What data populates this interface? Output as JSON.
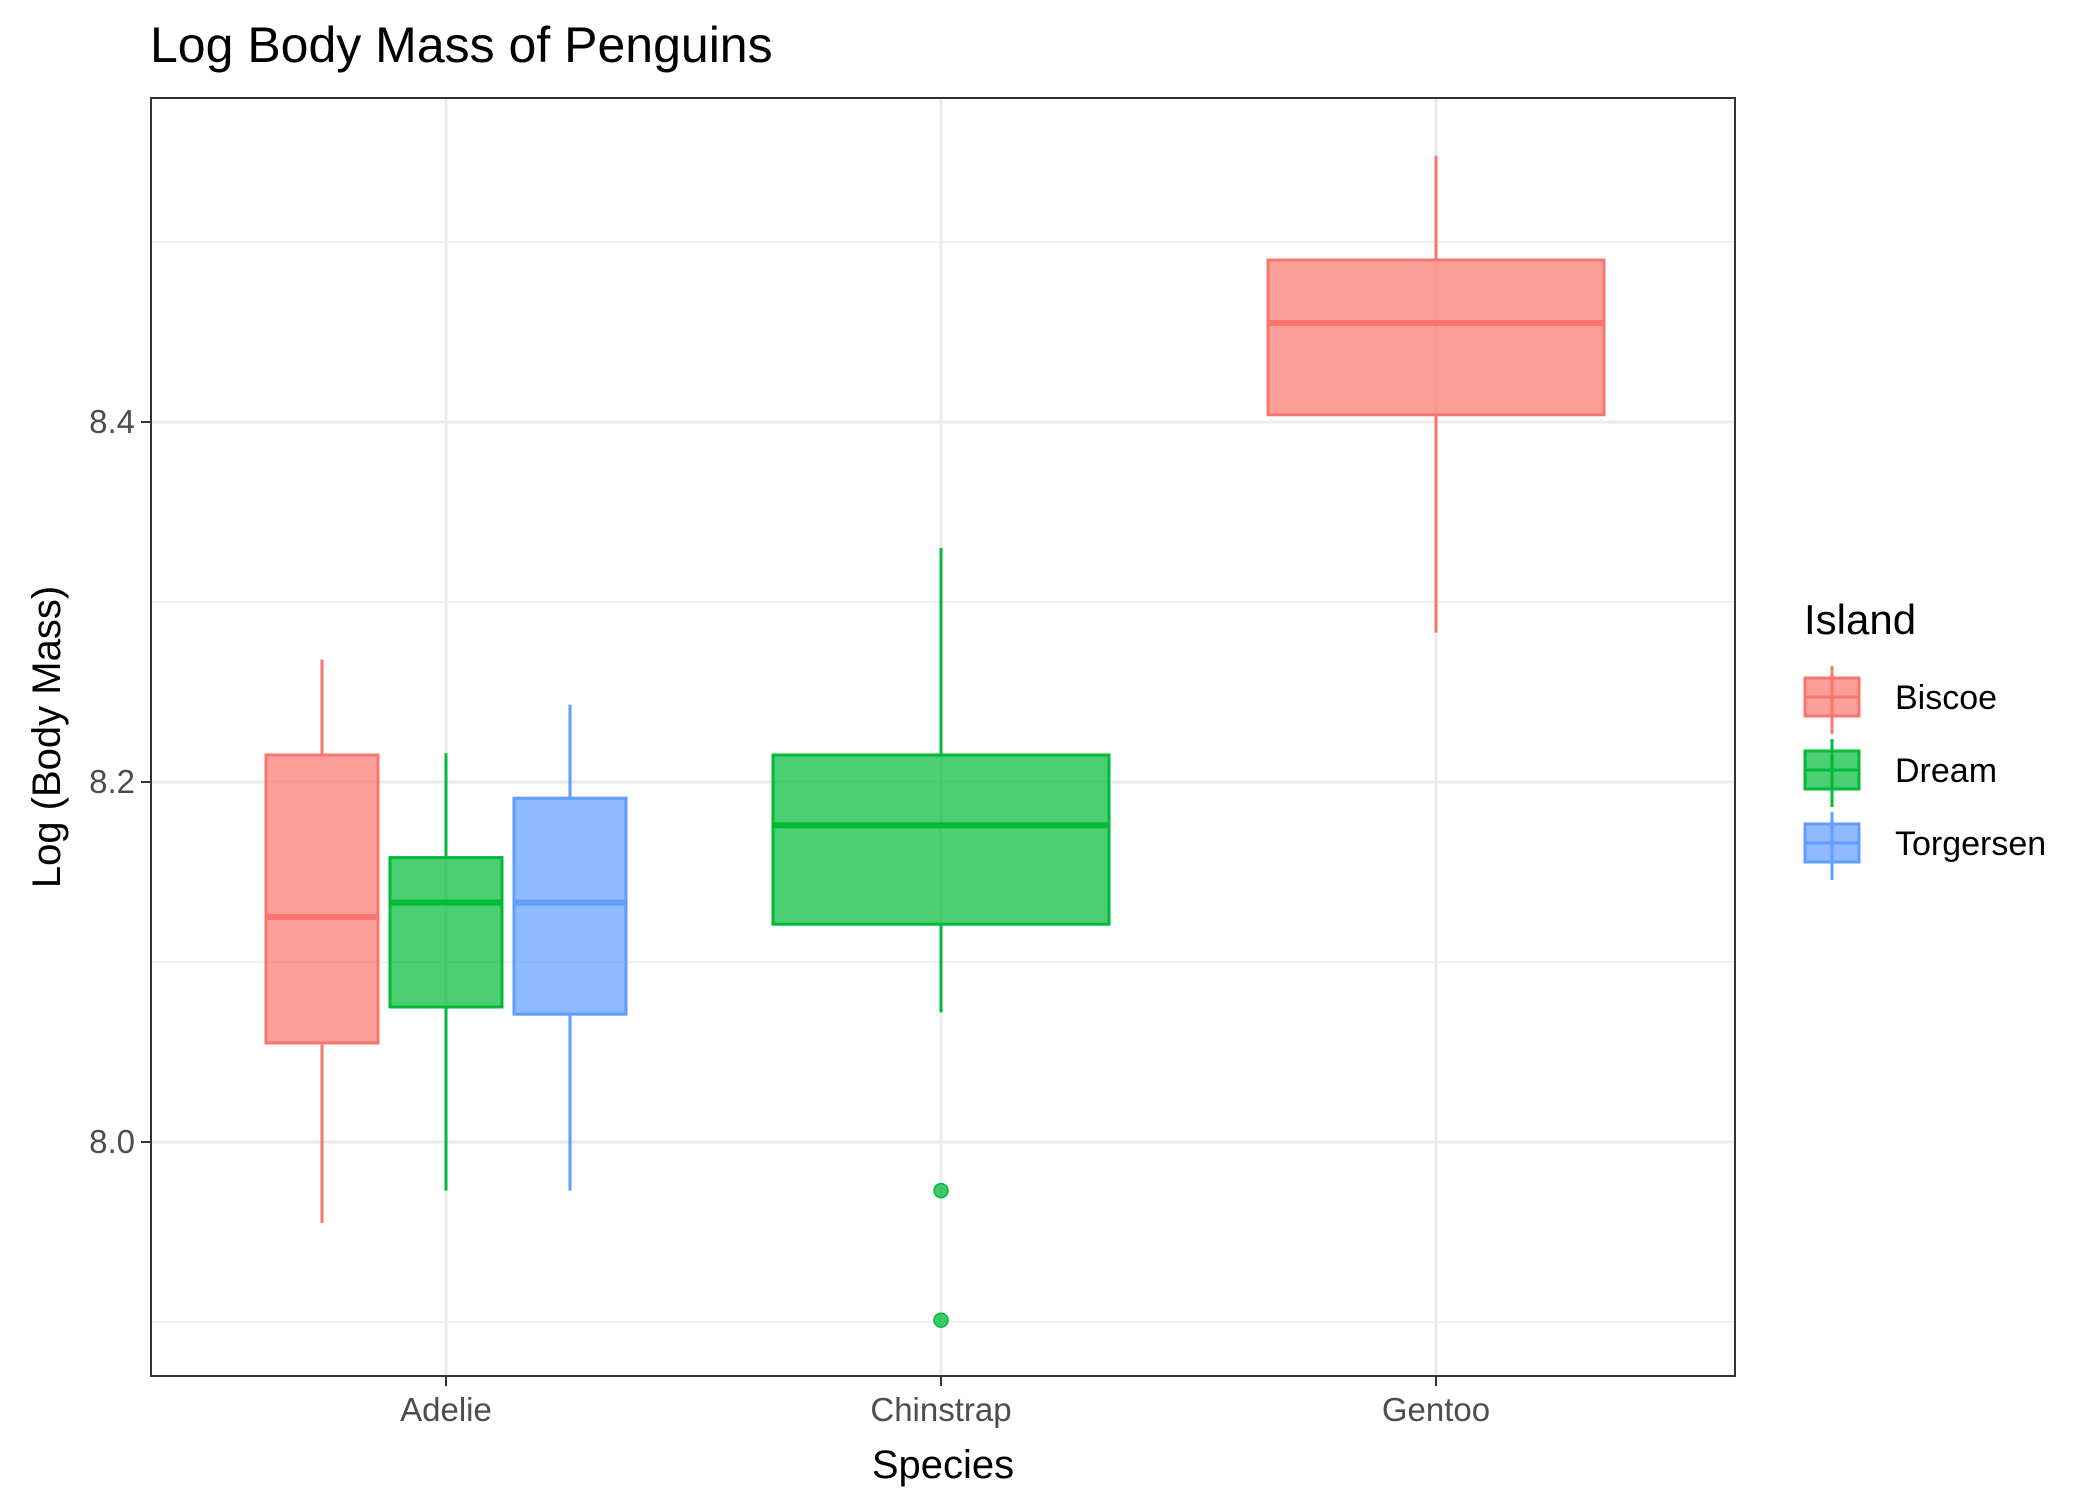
{
  "chart_data": {
    "type": "box",
    "title": "Log Body Mass of Penguins",
    "xlabel": "Species",
    "ylabel": "Log (Body Mass)",
    "categories": [
      "Adelie",
      "Chinstrap",
      "Gentoo"
    ],
    "ylim": [
      7.87,
      8.58
    ],
    "yticks": [
      8.0,
      8.2,
      8.4
    ],
    "ytick_labels": [
      "8.0",
      "8.2",
      "8.4"
    ],
    "grid": true,
    "legend": {
      "title": "Island",
      "position": "right"
    },
    "series": [
      {
        "name": "Biscoe",
        "color": "#F8766D",
        "boxes": [
          {
            "category": "Adelie",
            "min": 7.955,
            "q1": 8.055,
            "median": 8.125,
            "q3": 8.215,
            "max": 8.268,
            "outliers": []
          },
          {
            "category": "Gentoo",
            "min": 8.283,
            "q1": 8.404,
            "median": 8.455,
            "q3": 8.49,
            "max": 8.548,
            "outliers": []
          }
        ]
      },
      {
        "name": "Dream",
        "color": "#00BA38",
        "boxes": [
          {
            "category": "Adelie",
            "min": 7.973,
            "q1": 8.075,
            "median": 8.133,
            "q3": 8.158,
            "max": 8.216,
            "outliers": []
          },
          {
            "category": "Chinstrap",
            "min": 8.072,
            "q1": 8.121,
            "median": 8.176,
            "q3": 8.215,
            "max": 8.33,
            "outliers": [
              7.973,
              7.901
            ]
          }
        ]
      },
      {
        "name": "Torgersen",
        "color": "#619CFF",
        "boxes": [
          {
            "category": "Adelie",
            "min": 7.973,
            "q1": 8.071,
            "median": 8.133,
            "q3": 8.191,
            "max": 8.243,
            "outliers": []
          }
        ]
      }
    ]
  }
}
